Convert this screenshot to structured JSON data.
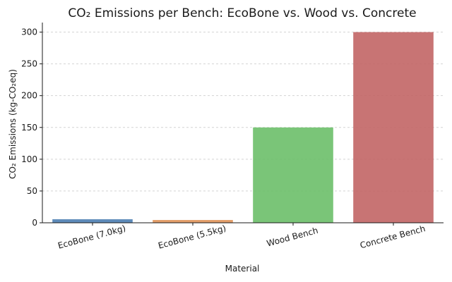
{
  "chart_data": {
    "type": "bar",
    "title": "CO₂ Emissions per Bench: EcoBone vs. Wood vs. Concrete",
    "xlabel": "Material",
    "ylabel": "CO₂ Emissions (kg-CO₂eq)",
    "categories": [
      "EcoBone (7.0kg)",
      "EcoBone (5.5kg)",
      "Wood Bench",
      "Concrete Bench"
    ],
    "values": [
      5.6,
      4.4,
      150,
      300
    ],
    "colors": [
      "#4e7fb3",
      "#e0935a",
      "#6cbf69",
      "#c26565"
    ],
    "ylim": [
      0,
      315
    ],
    "yticks": [
      0,
      50,
      100,
      150,
      200,
      250,
      300
    ],
    "grid": true,
    "grid_axis": "y"
  }
}
